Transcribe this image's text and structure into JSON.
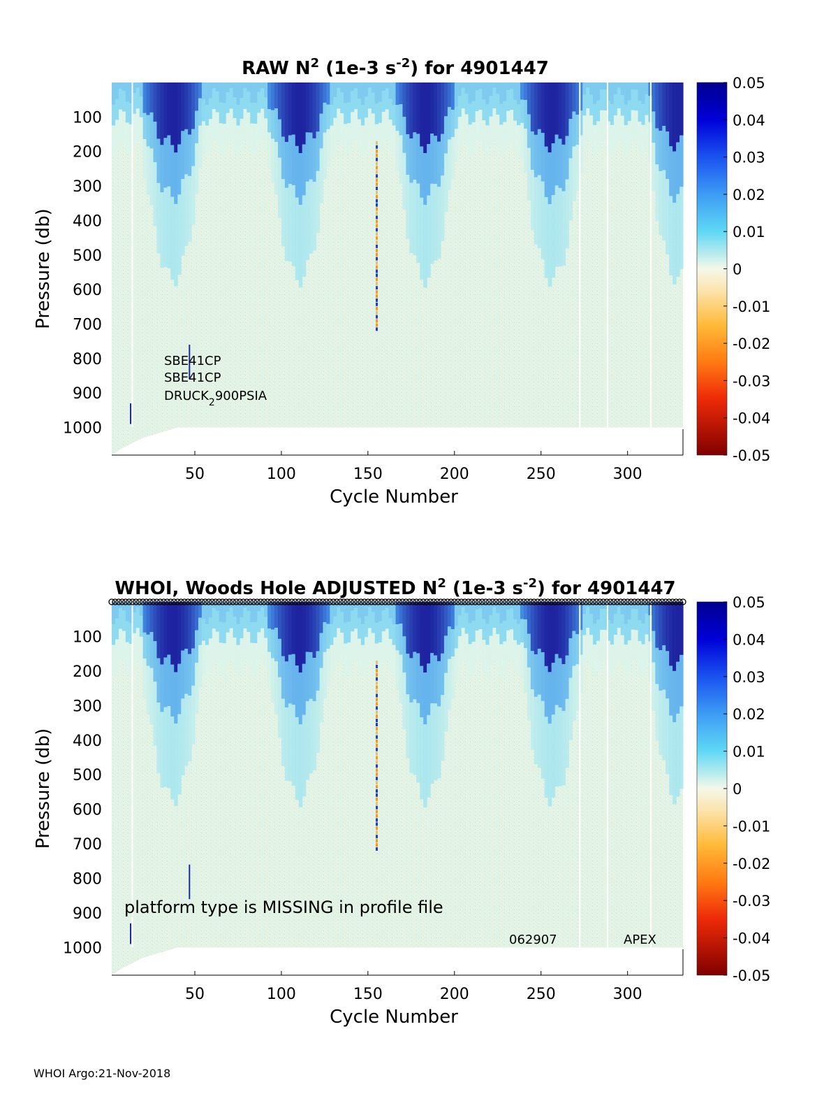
{
  "chart_data": [
    {
      "type": "heatmap",
      "title": "RAW N2 (1e-3 s-2) for 4901447",
      "title_parts": {
        "pre": "RAW N",
        "sup1": "2",
        "mid": " (1e-3 s",
        "sup2": "-2",
        "post": ") for 4901447"
      },
      "xlabel": "Cycle Number",
      "ylabel": "Pressure (db)",
      "xlim": [
        2,
        332
      ],
      "ylim": [
        0,
        1080
      ],
      "y_reversed": true,
      "xticks": [
        50,
        100,
        150,
        200,
        250,
        300
      ],
      "yticks": [
        100,
        200,
        300,
        400,
        500,
        600,
        700,
        800,
        900,
        1000
      ],
      "clim": [
        -0.05,
        0.05
      ],
      "colorbar_ticks": [
        "0.05",
        "0.04",
        "0.03",
        "0.02",
        "0.01",
        "0",
        "-0.01",
        "-0.02",
        "-0.03",
        "-0.04",
        "-0.05"
      ],
      "annotations": {
        "sensor1": "SBE41CP",
        "sensor2": "SBE41CP",
        "sensor3_pre": "DRUCK",
        "sensor3_sub": "2",
        "sensor3_post": "900PSIA"
      }
    },
    {
      "type": "heatmap",
      "title": "WHOI, Woods Hole  ADJUSTED N2 (1e-3 s-2) for 4901447",
      "title_parts": {
        "pre": "WHOI, Woods Hole  ADJUSTED N",
        "sup1": "2",
        "mid": " (1e-3 s",
        "sup2": "-2",
        "post": ") for 4901447"
      },
      "xlabel": "Cycle Number",
      "ylabel": "Pressure (db)",
      "xlim": [
        2,
        332
      ],
      "ylim": [
        0,
        1080
      ],
      "y_reversed": true,
      "xticks": [
        50,
        100,
        150,
        200,
        250,
        300
      ],
      "yticks": [
        100,
        200,
        300,
        400,
        500,
        600,
        700,
        800,
        900,
        1000
      ],
      "clim": [
        -0.05,
        0.05
      ],
      "colorbar_ticks": [
        "0.05",
        "0.04",
        "0.03",
        "0.02",
        "0.01",
        "0",
        "-0.01",
        "-0.02",
        "-0.03",
        "-0.04",
        "-0.05"
      ],
      "annotations": {
        "platform_note": "platform type is MISSING in profile file",
        "serial": "062907",
        "platform": "APEX"
      }
    }
  ],
  "footer": "WHOI Argo:21-Nov-2018"
}
